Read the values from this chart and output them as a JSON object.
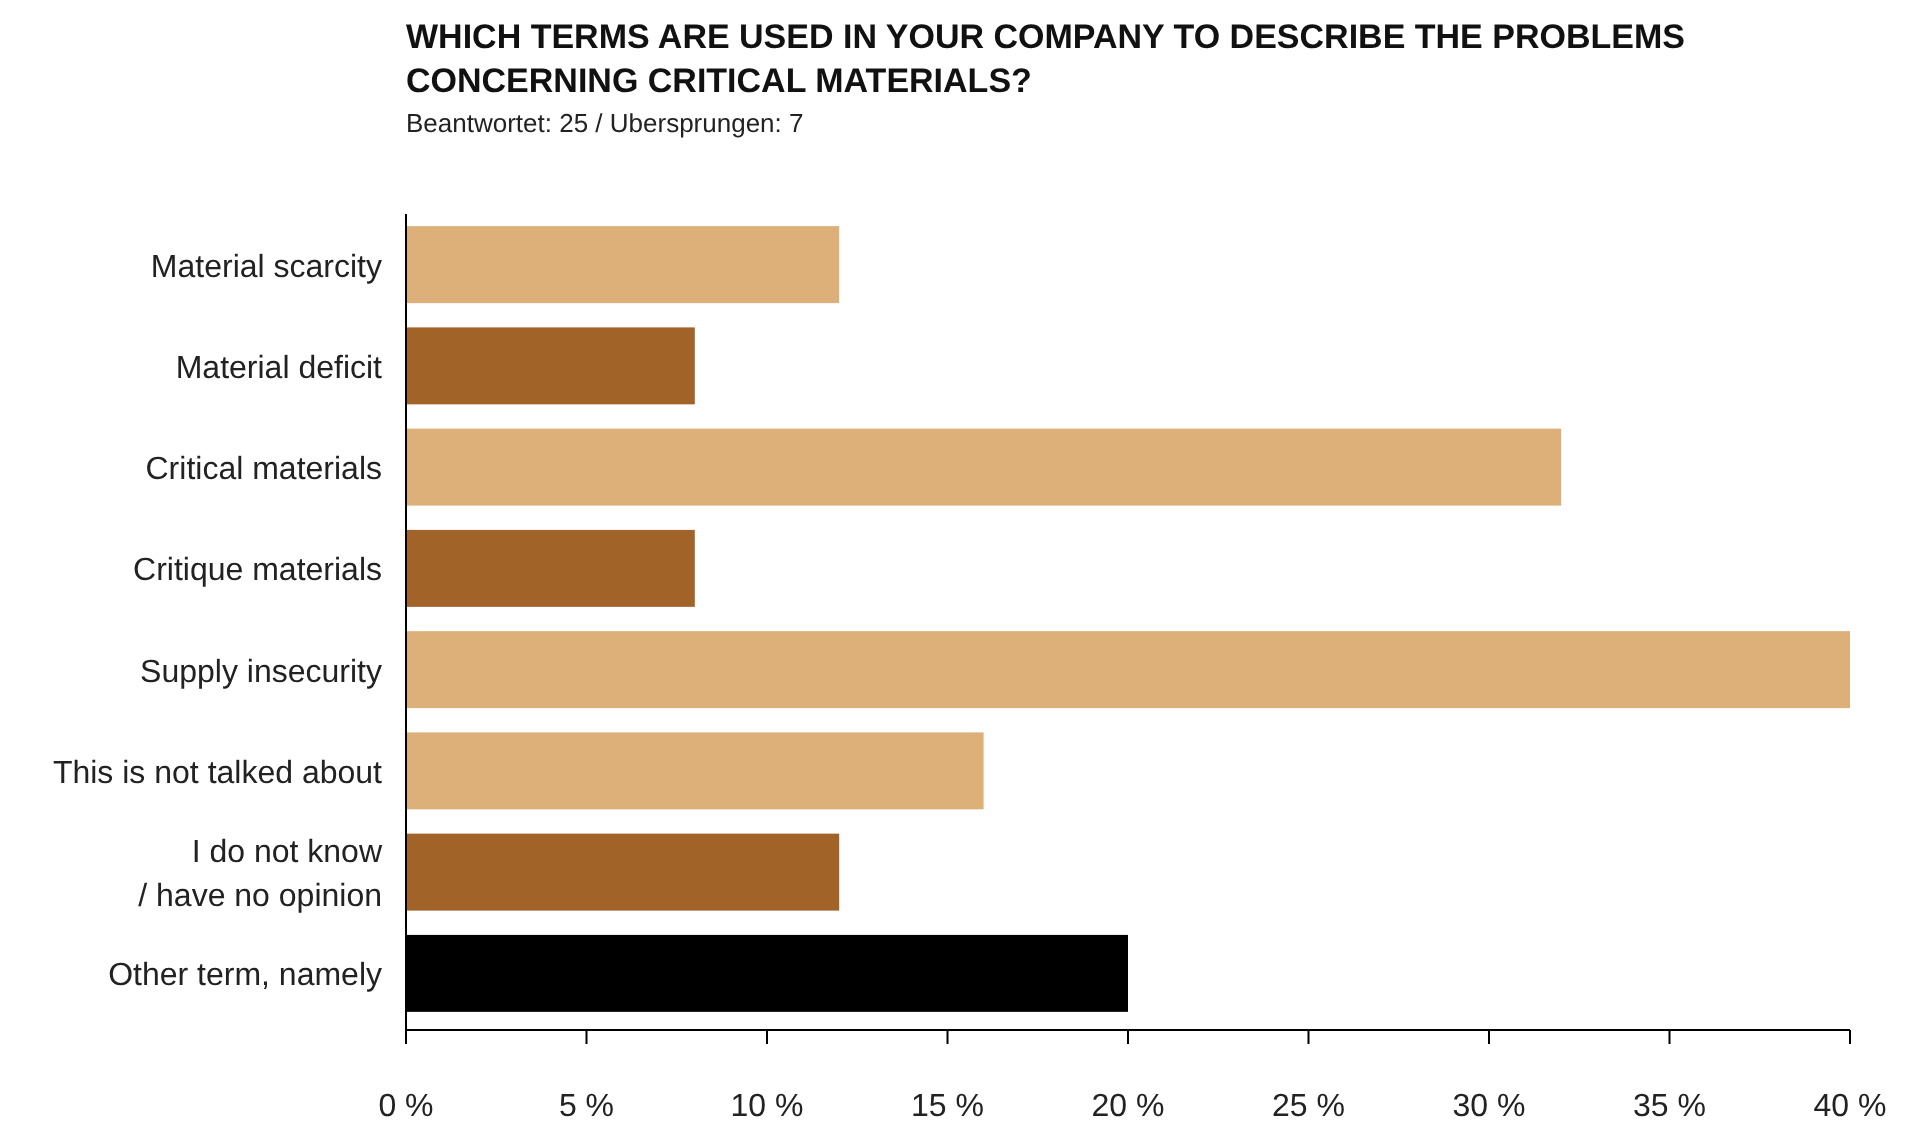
{
  "chart_data": {
    "type": "bar",
    "orientation": "horizontal",
    "title": "WHICH TERMS ARE USED IN YOUR COMPANY TO DESCRIBE THE PROBLEMS CONCERNING CRITICAL MATERIALS?",
    "subtitle": "Beantwortet: 25 / Ubersprungen: 7",
    "categories": [
      "Material scarcity",
      "Material deficit",
      "Critical materials",
      "Critique materials",
      "Supply insecurity",
      "This is not talked about",
      "I do not know\n/ have no opinion",
      "Other term, namely"
    ],
    "values": [
      12,
      8,
      32,
      8,
      40,
      16,
      12,
      20
    ],
    "colors": [
      "#ddb07a",
      "#a26329",
      "#ddb07a",
      "#a26329",
      "#ddb07a",
      "#ddb07a",
      "#a26329",
      "#000000"
    ],
    "xlim": [
      0,
      40
    ],
    "xticks": [
      {
        "value": 0,
        "label": "0 %"
      },
      {
        "value": 5,
        "label": "5 %"
      },
      {
        "value": 10,
        "label": "10 %"
      },
      {
        "value": 15,
        "label": "15 %"
      },
      {
        "value": 20,
        "label": "20 %"
      },
      {
        "value": 25,
        "label": "25 %"
      },
      {
        "value": 30,
        "label": "30 %"
      },
      {
        "value": 35,
        "label": "35 %"
      },
      {
        "value": 40,
        "label": "40 %"
      }
    ],
    "grid": false
  }
}
